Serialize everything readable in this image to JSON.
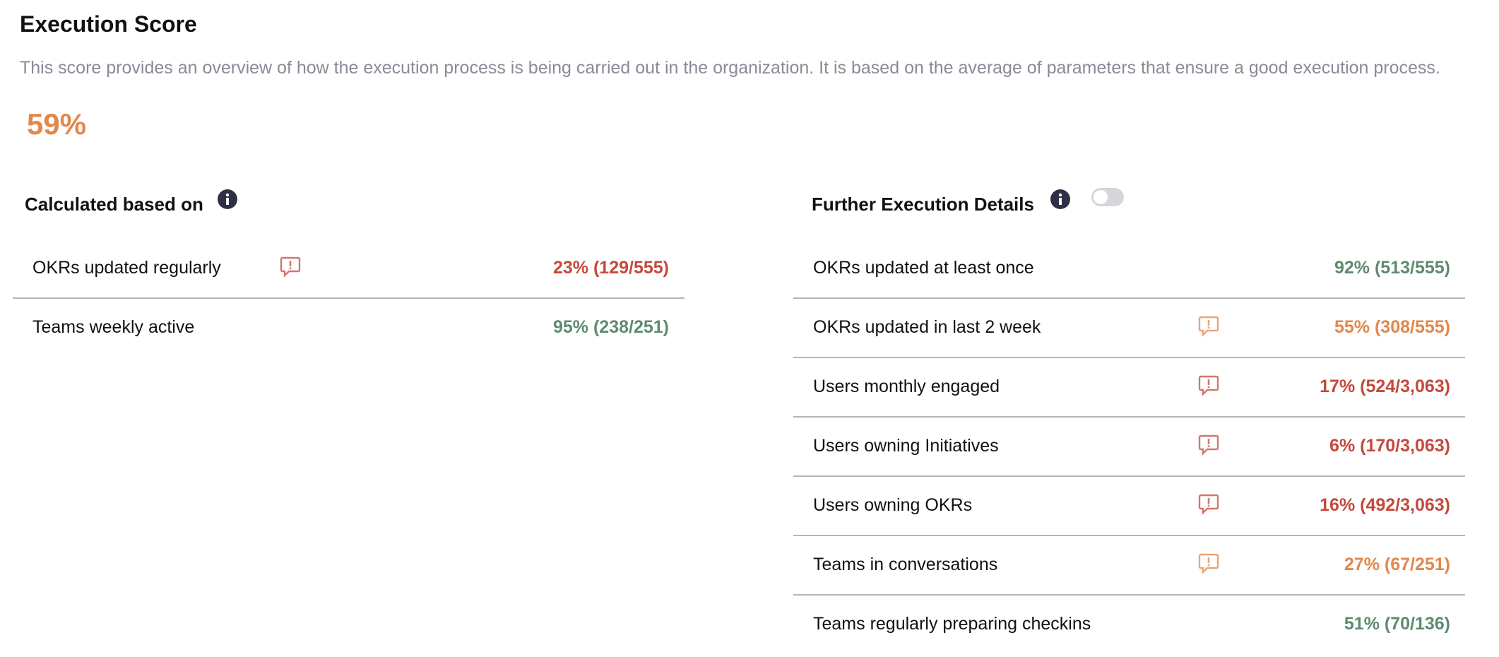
{
  "header": {
    "title": "Execution Score",
    "description": "This score provides an overview of how the execution process is being carried out in the organization. It is based on the average of parameters that ensure a good execution process.",
    "score": "59%",
    "score_color": "#e3874a"
  },
  "left": {
    "title": "Calculated based on",
    "rows": [
      {
        "label": "OKRs updated regularly",
        "value": "23% (129/555)",
        "color": "#c4493c",
        "alert": true
      },
      {
        "label": "Teams weekly active",
        "value": "95% (238/251)",
        "color": "#5e8b70",
        "alert": false
      }
    ]
  },
  "right": {
    "title": "Further Execution Details",
    "toggle": false,
    "rows": [
      {
        "label": "OKRs updated at least once",
        "value": "92% (513/555)",
        "color": "#5e8b70",
        "alert": false
      },
      {
        "label": "OKRs updated in last 2 week",
        "value": "55% (308/555)",
        "color": "#e3874a",
        "alert": true
      },
      {
        "label": "Users monthly engaged",
        "value": "17% (524/3,063)",
        "color": "#c4493c",
        "alert": true
      },
      {
        "label": "Users owning Initiatives",
        "value": "6% (170/3,063)",
        "color": "#c4493c",
        "alert": true
      },
      {
        "label": "Users owning OKRs",
        "value": "16% (492/3,063)",
        "color": "#c4493c",
        "alert": true
      },
      {
        "label": "Teams in conversations",
        "value": "27% (67/251)",
        "color": "#e3874a",
        "alert": true
      },
      {
        "label": "Teams regularly preparing checkins",
        "value": "51% (70/136)",
        "color": "#5e8b70",
        "alert": false
      }
    ]
  }
}
